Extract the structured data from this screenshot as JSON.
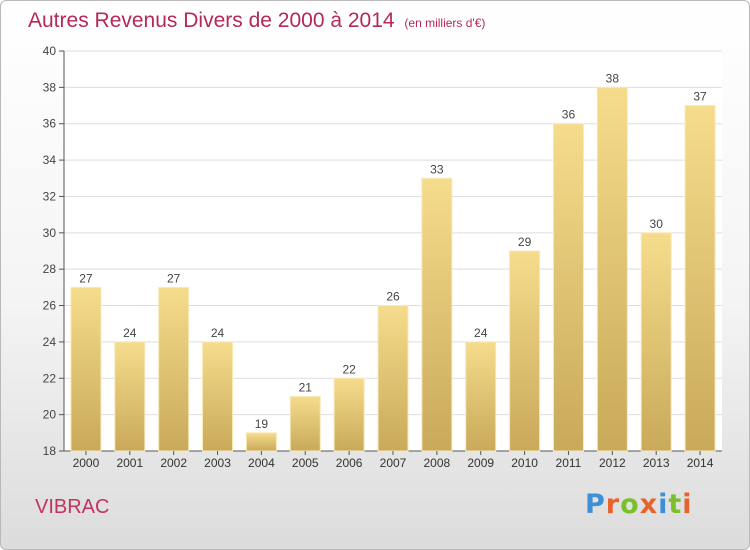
{
  "page": {
    "title": "Autres Revenus Divers de 2000 à 2014",
    "subtitle": "(en milliers d'€)",
    "commune": "VIBRAC",
    "logo_text": "Proxiti"
  },
  "chart_data": {
    "type": "bar",
    "title": "Autres Revenus Divers de 2000 à 2014",
    "subtitle": "(en milliers d'€)",
    "xlabel": "",
    "ylabel": "",
    "categories": [
      "2000",
      "2001",
      "2002",
      "2003",
      "2004",
      "2005",
      "2006",
      "2007",
      "2008",
      "2009",
      "2010",
      "2011",
      "2012",
      "2013",
      "2014"
    ],
    "values": [
      27,
      24,
      27,
      24,
      19,
      21,
      22,
      26,
      33,
      24,
      29,
      36,
      38,
      30,
      37
    ],
    "ylim": [
      18,
      40
    ],
    "yticks": [
      18,
      20,
      22,
      24,
      26,
      28,
      30,
      32,
      34,
      36,
      38,
      40
    ],
    "grid": true,
    "legend": "none",
    "colors": {
      "bar_light": "#f5dc8c",
      "bar_dark": "#c9a95a",
      "title": "#b5285a",
      "grid": "#dddddd"
    }
  },
  "logo_colors": [
    "#3d8fd6",
    "#e8632b",
    "#7bbf2a",
    "#e8632b",
    "#3d8fd6",
    "#7bbf2a",
    "#e8632b"
  ]
}
